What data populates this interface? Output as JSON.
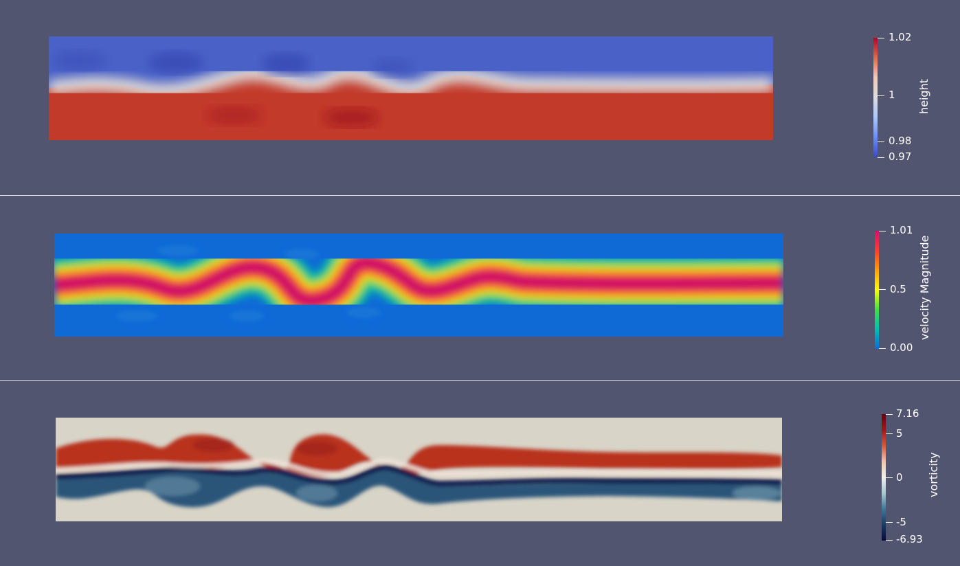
{
  "panels": [
    {
      "id": "height",
      "colorbar": {
        "title": "height",
        "max_label": "1.02",
        "min_label": "0.97",
        "ticks": [
          {
            "label": "1.02"
          },
          {
            "label": "1"
          },
          {
            "label": "0.98"
          },
          {
            "label": "0.97"
          }
        ],
        "colors": [
          "#b40426",
          "#dd6a52",
          "#f2cbb7",
          "#dddddd",
          "#aac7fd",
          "#6b8df0",
          "#3b4cc0"
        ]
      }
    },
    {
      "id": "velocity",
      "colorbar": {
        "title": "velocity Magnitude",
        "ticks": [
          {
            "label": "1.01"
          },
          {
            "label": "0.5"
          },
          {
            "label": "0.00"
          }
        ],
        "colors": [
          "#d6106e",
          "#ff3b2f",
          "#ffa000",
          "#ffff00",
          "#40e040",
          "#00c0b0",
          "#0a6cd8"
        ]
      }
    },
    {
      "id": "vorticity",
      "colorbar": {
        "title": "vorticity",
        "ticks": [
          {
            "label": "7.16"
          },
          {
            "label": "5"
          },
          {
            "label": "0"
          },
          {
            "label": "-5"
          },
          {
            "label": "-6.93"
          }
        ],
        "colors": [
          "#67000d",
          "#a2171a",
          "#d65a3a",
          "#f2c6a8",
          "#f0f0ec",
          "#a8c8d0",
          "#3f7896",
          "#1a3a64",
          "#08093a"
        ]
      }
    }
  ]
}
